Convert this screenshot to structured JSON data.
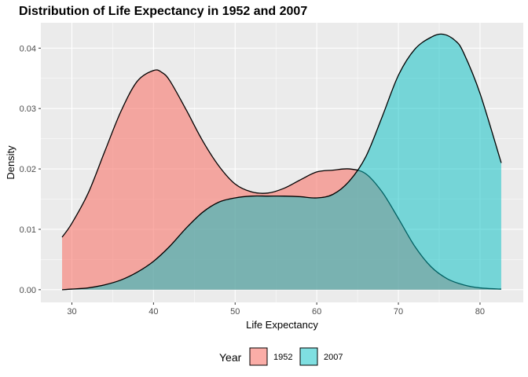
{
  "chart_data": {
    "type": "area",
    "title": "Distribution of Life Expectancy in 1952 and 2007",
    "xlabel": "Life Expectancy",
    "ylabel": "Density",
    "xlim": [
      26.2,
      85.3
    ],
    "ylim": [
      -0.0021,
      0.0442
    ],
    "x_ticks": [
      30,
      40,
      50,
      60,
      70,
      80
    ],
    "x_tick_labels": [
      "30",
      "40",
      "50",
      "60",
      "70",
      "80"
    ],
    "y_ticks": [
      0.0,
      0.01,
      0.02,
      0.03,
      0.04
    ],
    "y_tick_labels": [
      "0.00",
      "0.01",
      "0.02",
      "0.03",
      "0.04"
    ],
    "grid": true,
    "legend": {
      "title": "Year",
      "position": "bottom"
    },
    "series": [
      {
        "name": "1952",
        "color": "#F8766D",
        "x": [
          28.8,
          30,
          32,
          34,
          36,
          38,
          40,
          41,
          42,
          44,
          46,
          48,
          50,
          52,
          54,
          56,
          58,
          60,
          62,
          64,
          66,
          68,
          70,
          72,
          74,
          76,
          78,
          80,
          82.6
        ],
        "values": [
          0.0087,
          0.011,
          0.016,
          0.0228,
          0.0295,
          0.0345,
          0.0363,
          0.036,
          0.0346,
          0.0298,
          0.0247,
          0.0205,
          0.0175,
          0.0162,
          0.016,
          0.0168,
          0.0182,
          0.0195,
          0.0198,
          0.02,
          0.0192,
          0.0162,
          0.0118,
          0.0072,
          0.0038,
          0.0018,
          0.0008,
          0.0003,
          0.0001
        ]
      },
      {
        "name": "2007",
        "color": "#00BFC4",
        "x": [
          28.8,
          30,
          32,
          34,
          36,
          38,
          40,
          42,
          44,
          46,
          48,
          50,
          52,
          54,
          56,
          58,
          60,
          62,
          64,
          66,
          68,
          70,
          72,
          74,
          75.5,
          77,
          78,
          80,
          82.6
        ],
        "values": [
          0.0,
          0.0001,
          0.0003,
          0.0008,
          0.0016,
          0.0029,
          0.0047,
          0.0072,
          0.0102,
          0.0128,
          0.0145,
          0.0152,
          0.0155,
          0.0155,
          0.0155,
          0.0154,
          0.0152,
          0.0158,
          0.018,
          0.022,
          0.0286,
          0.0355,
          0.0398,
          0.0418,
          0.0423,
          0.0412,
          0.0392,
          0.0325,
          0.021
        ]
      }
    ]
  }
}
